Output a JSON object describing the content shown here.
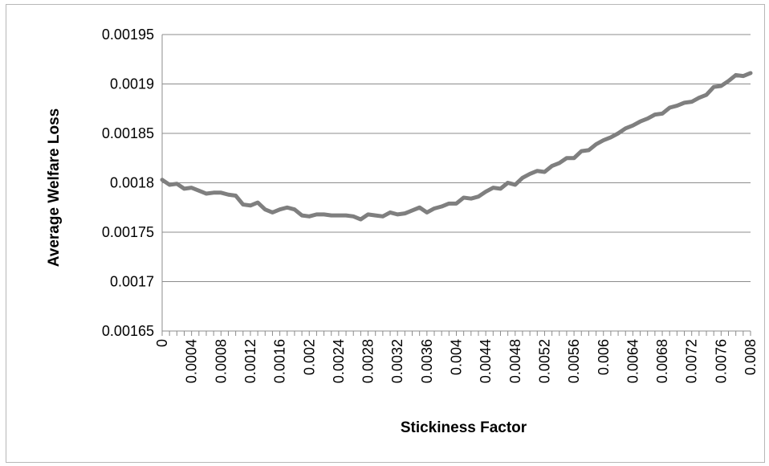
{
  "chart_data": {
    "type": "line",
    "xlabel": "Stickiness Factor",
    "ylabel": "Average Welfare Loss",
    "ylim": [
      0.00165,
      0.00195
    ],
    "y_ticks": [
      "0.00165",
      "0.0017",
      "0.00175",
      "0.0018",
      "0.00185",
      "0.0019",
      "0.00195"
    ],
    "x_tick_labels": [
      "0",
      "0.0004",
      "0.0008",
      "0.0012",
      "0.0016",
      "0.002",
      "0.0024",
      "0.0028",
      "0.0032",
      "0.0036",
      "0.004",
      "0.0044",
      "0.0048",
      "0.0052",
      "0.0056",
      "0.006",
      "0.0064",
      "0.0068",
      "0.0072",
      "0.0076",
      "0.008"
    ],
    "grid": "horizontal",
    "legend": "none",
    "line_color": "#7f7f7f",
    "series": [
      {
        "x": [
          0,
          0.0001,
          0.0002,
          0.0003,
          0.0004,
          0.0005,
          0.0006,
          0.0007,
          0.0008,
          0.0009,
          0.001,
          0.0011,
          0.0012,
          0.0013,
          0.0014,
          0.0015,
          0.0016,
          0.0017,
          0.0018,
          0.0019,
          0.002,
          0.0021,
          0.0022,
          0.0023,
          0.0024,
          0.0025,
          0.0026,
          0.0027,
          0.0028,
          0.0029,
          0.003,
          0.0031,
          0.0032,
          0.0033,
          0.0034,
          0.0035,
          0.0036,
          0.0037,
          0.0038,
          0.0039,
          0.004,
          0.0041,
          0.0042,
          0.0043,
          0.0044,
          0.0045,
          0.0046,
          0.0047,
          0.0048,
          0.0049,
          0.005,
          0.0051,
          0.0052,
          0.0053,
          0.0054,
          0.0055,
          0.0056,
          0.0057,
          0.0058,
          0.0059,
          0.006,
          0.0061,
          0.0062,
          0.0063,
          0.0064,
          0.0065,
          0.0066,
          0.0067,
          0.0068,
          0.0069,
          0.007,
          0.0071,
          0.0072,
          0.0073,
          0.0074,
          0.0075,
          0.0076,
          0.0077,
          0.0078,
          0.0079,
          0.008
        ],
        "values": [
          0.001803,
          0.001798,
          0.001799,
          0.001794,
          0.001795,
          0.001792,
          0.001789,
          0.00179,
          0.00179,
          0.001788,
          0.001787,
          0.001778,
          0.001777,
          0.00178,
          0.001773,
          0.00177,
          0.001773,
          0.001775,
          0.001773,
          0.001767,
          0.001766,
          0.001768,
          0.001768,
          0.001767,
          0.001767,
          0.001767,
          0.001766,
          0.001763,
          0.001768,
          0.001767,
          0.001766,
          0.00177,
          0.001768,
          0.001769,
          0.001772,
          0.001775,
          0.00177,
          0.001774,
          0.001776,
          0.001779,
          0.001779,
          0.001785,
          0.001784,
          0.001786,
          0.001791,
          0.001795,
          0.001794,
          0.0018,
          0.001798,
          0.001805,
          0.001809,
          0.001812,
          0.001811,
          0.001817,
          0.00182,
          0.001825,
          0.001825,
          0.001832,
          0.001833,
          0.001839,
          0.001843,
          0.001846,
          0.00185,
          0.001855,
          0.001858,
          0.001862,
          0.001865,
          0.001869,
          0.00187,
          0.001876,
          0.001878,
          0.001881,
          0.001882,
          0.001886,
          0.001889,
          0.001897,
          0.001898,
          0.001903,
          0.001909,
          0.001908,
          0.001911
        ]
      }
    ]
  }
}
